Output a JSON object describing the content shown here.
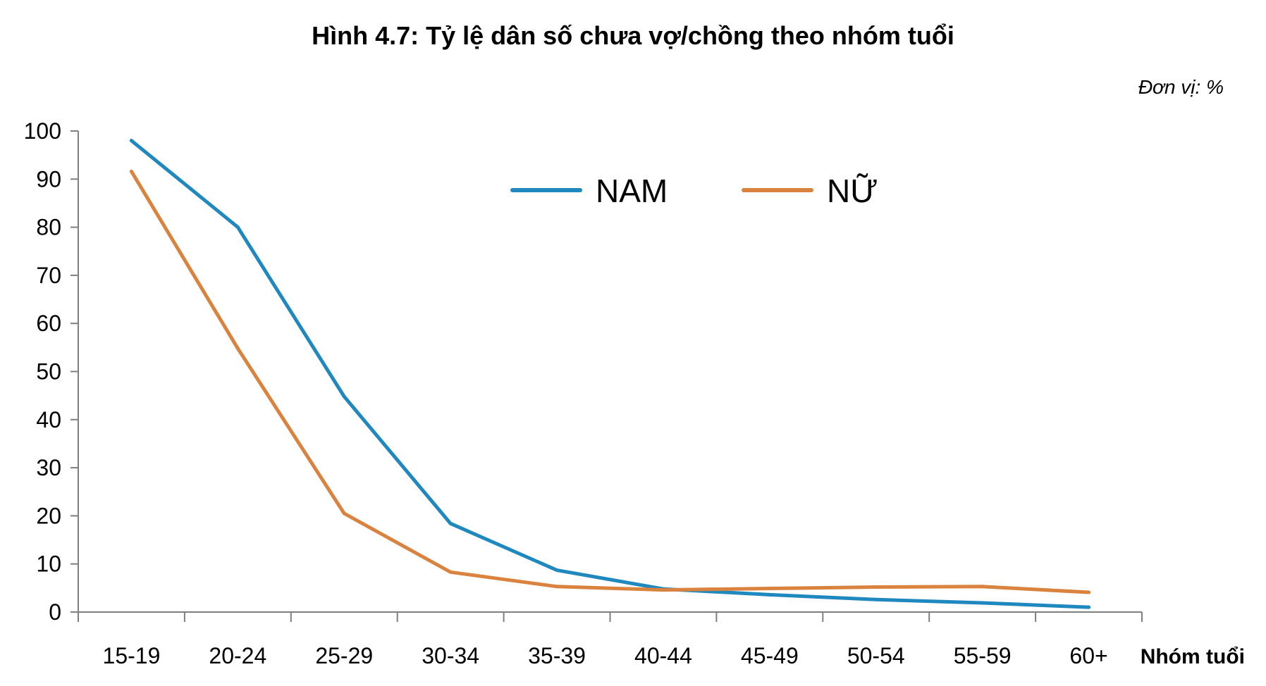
{
  "chart_data": {
    "type": "line",
    "title": "Hình 4.7: Tỷ lệ dân số chưa vợ/chồng theo nhóm tuổi",
    "unit_note": "Đơn vị: %",
    "xlabel": "Nhóm tuổi",
    "ylabel": "",
    "ylim": [
      0,
      100
    ],
    "yticks": [
      "0",
      "10",
      "20",
      "30",
      "40",
      "50",
      "60",
      "70",
      "80",
      "90",
      "100"
    ],
    "categories": [
      "15-19",
      "20-24",
      "25-29",
      "30-34",
      "35-39",
      "40-44",
      "45-49",
      "50-54",
      "55-59",
      "60+"
    ],
    "series": [
      {
        "name": "NAM",
        "color": "#1f88bf",
        "values": [
          98,
          80,
          44.8,
          18.4,
          8.7,
          4.8,
          3.6,
          2.6,
          1.9,
          1.0
        ]
      },
      {
        "name": "NỮ",
        "color": "#d9833f",
        "values": [
          91.6,
          54.8,
          20.5,
          8.3,
          5.3,
          4.6,
          4.9,
          5.2,
          5.3,
          4.1
        ]
      }
    ],
    "legend_position": "top-center",
    "grid": false
  }
}
